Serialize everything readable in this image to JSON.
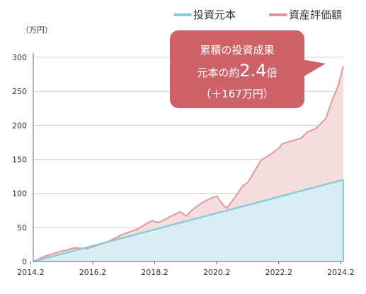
{
  "chart_data": {
    "type": "area",
    "y_unit": "（万円）",
    "x_ticks": [
      "2014.2",
      "2016.2",
      "2018.2",
      "2020.2",
      "2022.2",
      "2024.2"
    ],
    "y_ticks": [
      0,
      50,
      100,
      150,
      200,
      250,
      300
    ],
    "xlim": [
      2014.1667,
      2024.1667
    ],
    "ylim": [
      0,
      300
    ],
    "grid": "horizontal",
    "legend_position": "top-right",
    "colors": {
      "principal_line": "#8ccbdb",
      "principal_fill": "#d9eef4",
      "value_line": "#e0989b",
      "value_fill": "#f5dcdd",
      "callout_bg": "#cd6368",
      "grid": "#c8c8c8",
      "axis": "#666666"
    },
    "series": [
      {
        "name": "投資元本",
        "x": [
          2014.1667,
          2024.1667
        ],
        "values": [
          0,
          120
        ]
      },
      {
        "name": "資産評価額",
        "x": [
          2014.1667,
          2014.5,
          2015.0,
          2015.5,
          2015.9,
          2016.2,
          2016.5,
          2016.8,
          2017.0,
          2017.5,
          2017.8,
          2018.0,
          2018.2,
          2018.5,
          2018.9,
          2019.1,
          2019.3,
          2019.6,
          2019.9,
          2020.1,
          2020.2,
          2020.4,
          2020.7,
          2020.9,
          2021.1,
          2021.5,
          2021.9,
          2022.1,
          2022.2,
          2022.5,
          2022.8,
          2023.0,
          2023.3,
          2023.6,
          2023.8,
          2024.0,
          2024.1667
        ],
        "values": [
          0,
          7,
          14,
          20,
          19,
          23,
          28,
          34,
          39,
          47,
          55,
          60,
          57,
          64,
          73,
          67,
          76,
          86,
          93,
          96,
          88,
          78,
          96,
          110,
          117,
          148,
          160,
          167,
          173,
          177,
          181,
          190,
          196,
          210,
          236,
          258,
          287
        ]
      }
    ],
    "annotation": {
      "line1": "累積の投資成果",
      "line2_prefix": "元本の約",
      "line2_value": "2.4",
      "line2_suffix": "倍",
      "line3": "（＋167万円）"
    }
  }
}
